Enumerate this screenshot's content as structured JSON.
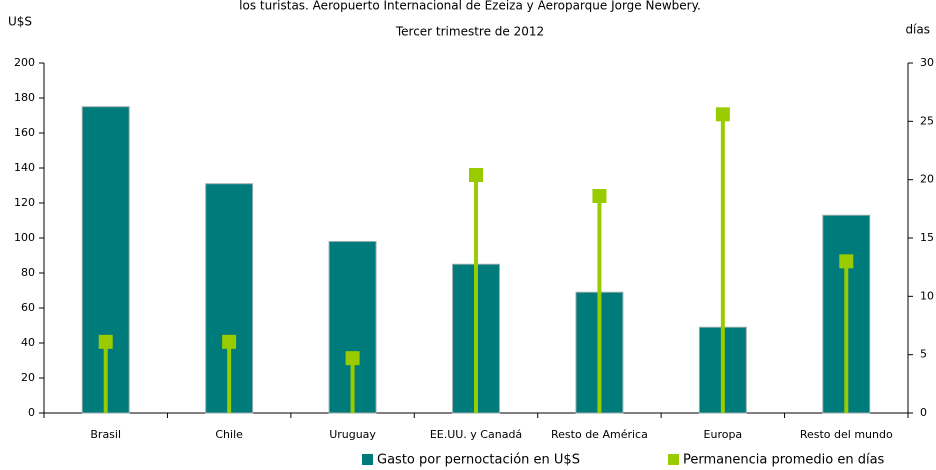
{
  "chart_data": {
    "type": "combo",
    "title": "los turistas. Aeropuerto Internacional de Ezeiza y Aeroparque Jorge Newbery.",
    "subtitle": "Tercer trimestre de 2012",
    "y_label": "U$S",
    "y2_label": "días",
    "categories": [
      "Brasil",
      "Chile",
      "Uruguay",
      "EE.UU. y Canadá",
      "Resto de América",
      "Europa",
      "Resto del mundo"
    ],
    "series": [
      {
        "name": "Gasto por pernoctación en U$S",
        "type": "bar",
        "color": "#007b7b",
        "values": [
          175,
          131,
          98,
          85,
          69,
          49,
          113
        ]
      },
      {
        "name": "Permanencia promedio en días",
        "type": "lollipop",
        "axis": "y2",
        "color": "#99cc00",
        "values": [
          6.1,
          6.1,
          4.7,
          20.4,
          18.6,
          25.6,
          13.0
        ]
      }
    ],
    "ylim": [
      0,
      200
    ],
    "yticks": [
      0,
      20,
      40,
      60,
      80,
      100,
      120,
      140,
      160,
      180,
      200
    ],
    "y2lim": [
      0,
      30
    ],
    "y2ticks": [
      0,
      5,
      10,
      15,
      20,
      25,
      30
    ],
    "grid": false,
    "legend": "bottom"
  }
}
